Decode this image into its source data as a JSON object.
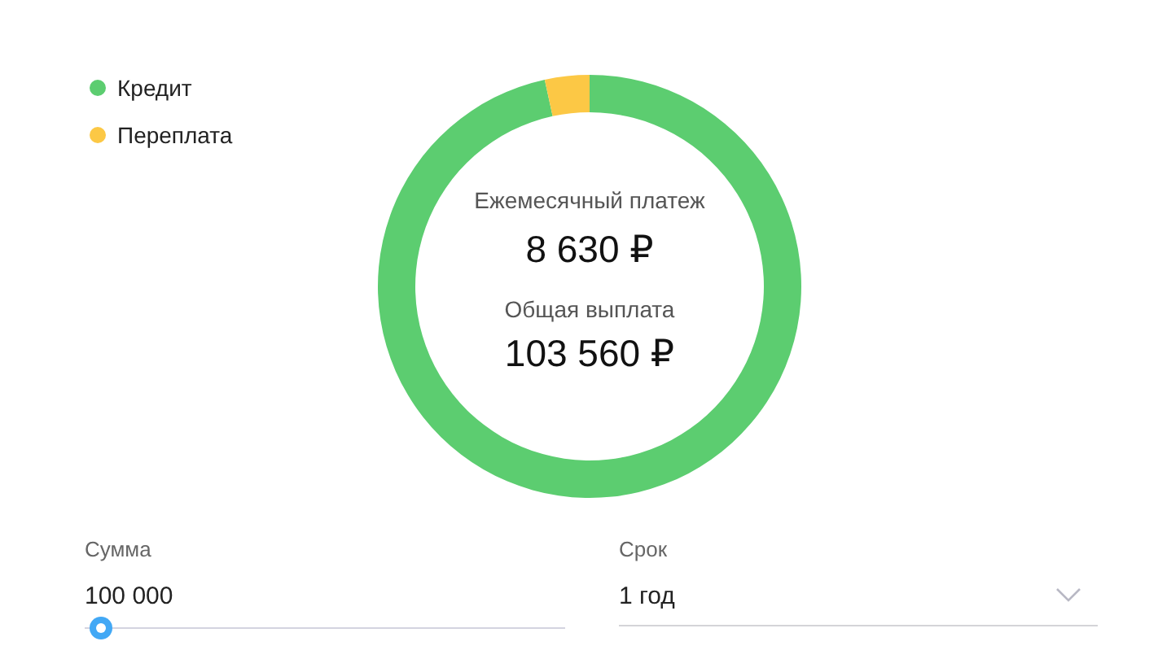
{
  "chart_data": {
    "type": "donut",
    "categories": [
      "Кредит",
      "Переплата"
    ],
    "values": [
      96.6,
      3.4
    ],
    "colors": [
      "#5ccd70",
      "#fcc845"
    ],
    "legend": "top left",
    "annotations": [
      "Ежемесячный платеж",
      "8 630 ₽",
      "Общая выплата",
      "103 560 ₽",
      "Сумма",
      "100 000",
      "Срок",
      "1 год"
    ]
  }
}
